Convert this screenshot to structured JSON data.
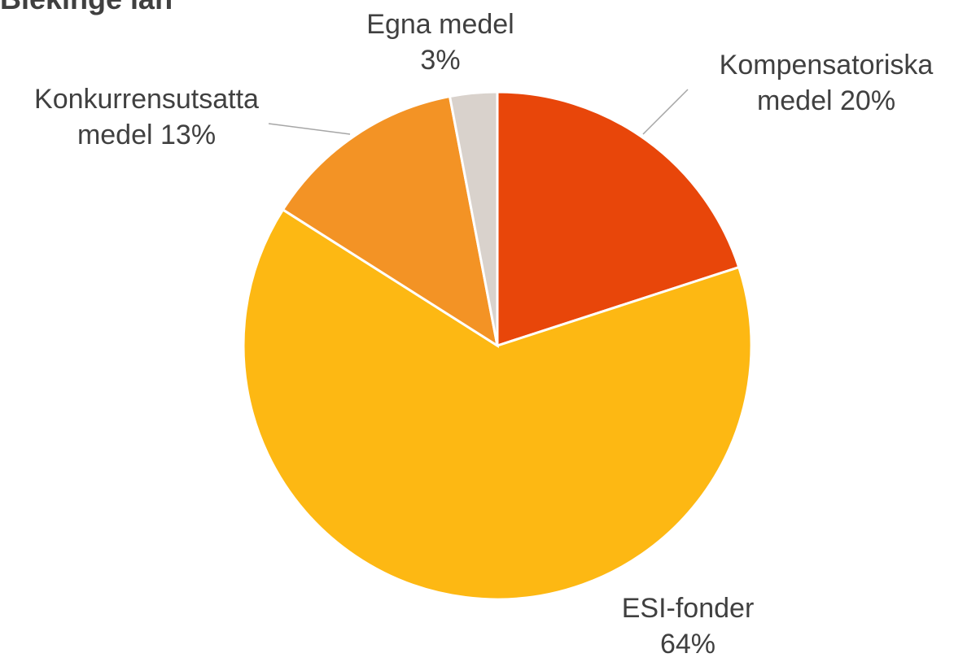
{
  "chart_data": {
    "type": "pie",
    "title": "Blekinge län",
    "categories": [
      "Kompensatoriska medel",
      "ESI-fonder",
      "Konkurrensutsatta medel",
      "Egna medel"
    ],
    "values": [
      20,
      64,
      13,
      3
    ],
    "value_labels": [
      "20%",
      "64%",
      "13%",
      "3%"
    ],
    "colors": [
      "#e8460a",
      "#fdb813",
      "#f39325",
      "#d9d2cc"
    ]
  }
}
